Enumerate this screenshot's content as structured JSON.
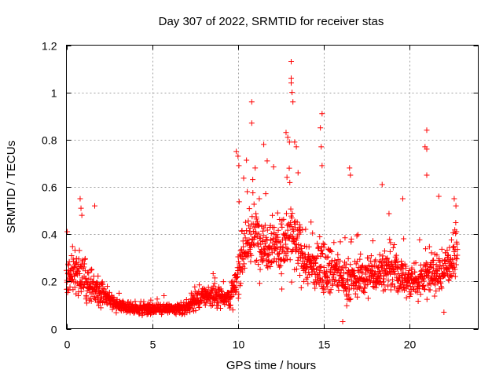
{
  "chart_data": {
    "type": "scatter",
    "title": "Day 307 of 2022, SRMTID for receiver stas",
    "xlabel": "GPS time / hours",
    "ylabel": "SRMTID / TECUs",
    "xlim": [
      0,
      24
    ],
    "ylim": [
      0,
      1.2
    ],
    "xticks": [
      0,
      5,
      10,
      15,
      20
    ],
    "xtick_labels": [
      "0",
      "5",
      "10",
      "15",
      "20"
    ],
    "yticks": [
      0,
      0.2,
      0.4,
      0.6,
      0.8,
      1,
      1.2
    ],
    "ytick_labels": [
      "0",
      "0.2",
      "0.4",
      "0.6",
      "0.8",
      "1",
      "1.2"
    ],
    "grid": true,
    "marker": "+",
    "color": "#ff0000",
    "series": [
      {
        "name": "stas",
        "profile": {
          "t": [
            0,
            0.5,
            1,
            1.5,
            2,
            2.5,
            3,
            3.5,
            4,
            4.5,
            5,
            5.5,
            6,
            6.5,
            7,
            7.5,
            8,
            8.5,
            9,
            9.5,
            9.9,
            10.2,
            10.5,
            11,
            11.5,
            12,
            12.5,
            13,
            13.5,
            14,
            14.5,
            15,
            15.5,
            16,
            16.5,
            17,
            17.5,
            18,
            18.5,
            19,
            19.5,
            20,
            20.5,
            21,
            21.5,
            22,
            22.5,
            22.8
          ],
          "median": [
            0.22,
            0.24,
            0.22,
            0.18,
            0.15,
            0.13,
            0.1,
            0.09,
            0.085,
            0.085,
            0.085,
            0.085,
            0.085,
            0.08,
            0.09,
            0.12,
            0.14,
            0.14,
            0.14,
            0.13,
            0.18,
            0.33,
            0.36,
            0.4,
            0.35,
            0.38,
            0.33,
            0.4,
            0.33,
            0.28,
            0.25,
            0.27,
            0.25,
            0.22,
            0.2,
            0.22,
            0.22,
            0.24,
            0.25,
            0.25,
            0.22,
            0.2,
            0.2,
            0.24,
            0.22,
            0.25,
            0.3,
            0.33
          ],
          "spread": [
            0.08,
            0.09,
            0.08,
            0.06,
            0.05,
            0.04,
            0.025,
            0.02,
            0.02,
            0.02,
            0.02,
            0.02,
            0.02,
            0.02,
            0.025,
            0.035,
            0.04,
            0.04,
            0.04,
            0.04,
            0.08,
            0.13,
            0.12,
            0.12,
            0.11,
            0.12,
            0.11,
            0.14,
            0.12,
            0.1,
            0.09,
            0.1,
            0.09,
            0.08,
            0.08,
            0.08,
            0.08,
            0.08,
            0.09,
            0.09,
            0.08,
            0.07,
            0.07,
            0.09,
            0.08,
            0.08,
            0.09,
            0.09
          ]
        },
        "peaks": [
          {
            "x": 0.8,
            "y": 0.55
          },
          {
            "x": 0.85,
            "y": 0.51
          },
          {
            "x": 0.9,
            "y": 0.48
          },
          {
            "x": 1.65,
            "y": 0.52
          },
          {
            "x": 9.9,
            "y": 0.75
          },
          {
            "x": 10.0,
            "y": 0.73
          },
          {
            "x": 10.05,
            "y": 0.69
          },
          {
            "x": 10.8,
            "y": 0.96
          },
          {
            "x": 10.8,
            "y": 0.87
          },
          {
            "x": 11.0,
            "y": 0.68
          },
          {
            "x": 11.5,
            "y": 0.78
          },
          {
            "x": 11.7,
            "y": 0.71
          },
          {
            "x": 12.8,
            "y": 0.83
          },
          {
            "x": 12.9,
            "y": 0.81
          },
          {
            "x": 13.0,
            "y": 0.79
          },
          {
            "x": 13.1,
            "y": 1.13
          },
          {
            "x": 13.1,
            "y": 1.06
          },
          {
            "x": 13.1,
            "y": 1.04
          },
          {
            "x": 13.15,
            "y": 1.0
          },
          {
            "x": 13.2,
            "y": 0.96
          },
          {
            "x": 13.3,
            "y": 0.79
          },
          {
            "x": 13.4,
            "y": 0.77
          },
          {
            "x": 13.5,
            "y": 0.66
          },
          {
            "x": 14.9,
            "y": 0.91
          },
          {
            "x": 14.8,
            "y": 0.85
          },
          {
            "x": 14.85,
            "y": 0.77
          },
          {
            "x": 14.9,
            "y": 0.69
          },
          {
            "x": 16.5,
            "y": 0.68
          },
          {
            "x": 16.55,
            "y": 0.65
          },
          {
            "x": 18.4,
            "y": 0.61
          },
          {
            "x": 19.6,
            "y": 0.55
          },
          {
            "x": 21.0,
            "y": 0.84
          },
          {
            "x": 20.9,
            "y": 0.77
          },
          {
            "x": 21.0,
            "y": 0.76
          },
          {
            "x": 21.0,
            "y": 0.65
          },
          {
            "x": 21.7,
            "y": 0.56
          },
          {
            "x": 22.6,
            "y": 0.55
          },
          {
            "x": 22.7,
            "y": 0.52
          },
          {
            "x": 16.1,
            "y": 0.03
          },
          {
            "x": 22.0,
            "y": 0.07
          }
        ]
      }
    ]
  }
}
